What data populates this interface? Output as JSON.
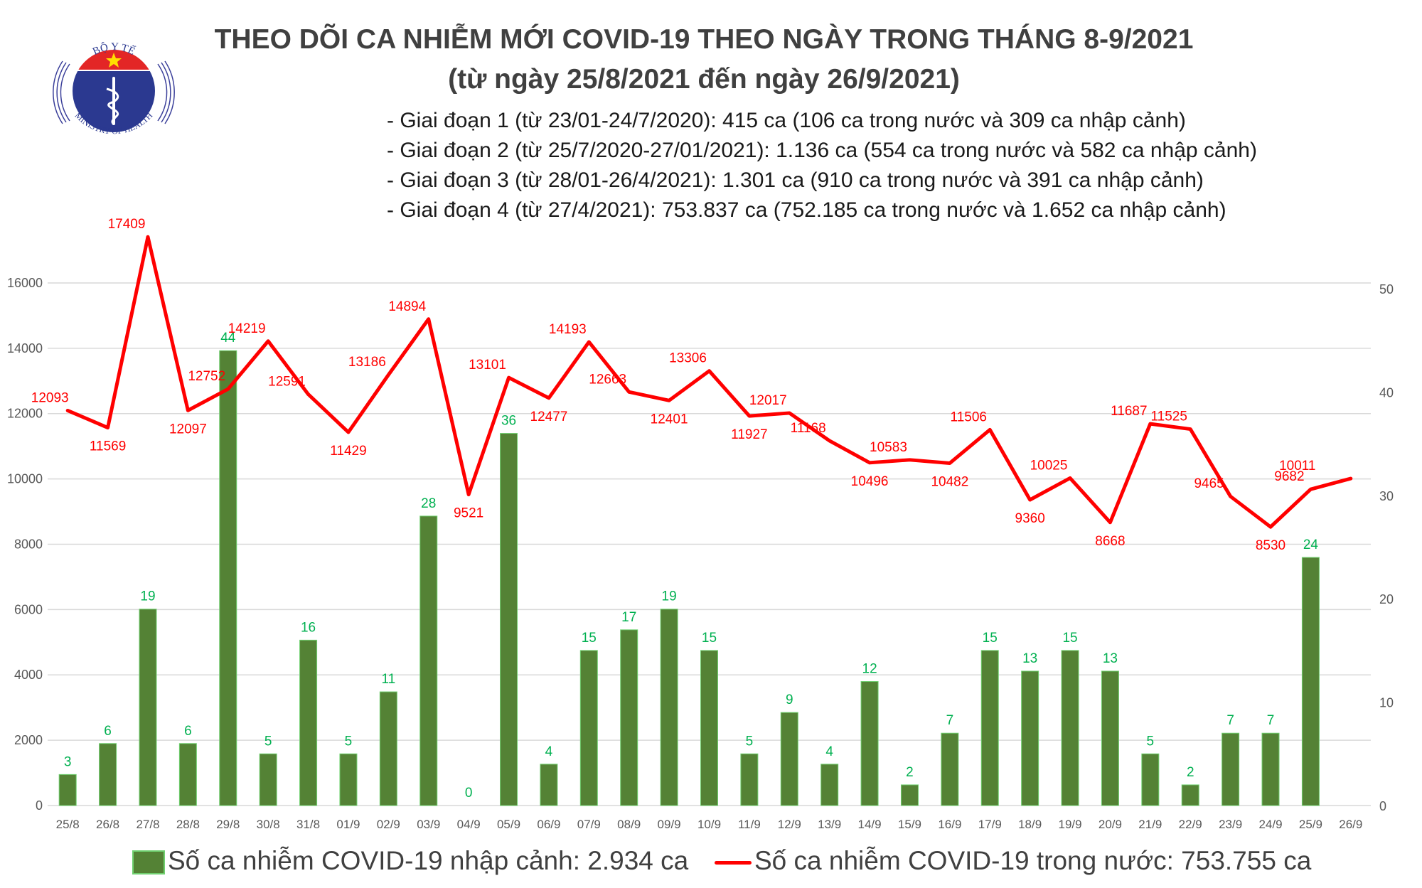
{
  "logo": {
    "top_text": "BỘ Y TẾ",
    "bottom_text": "MINISTRY OF HEALTH"
  },
  "title": {
    "line1": "THEO DÕI CA NHIỄM MỚI COVID-19 THEO NGÀY TRONG THÁNG 8-9/2021",
    "line2": "(từ ngày 25/8/2021 đến ngày 26/9/2021)"
  },
  "stages": [
    "- Giai đoạn 1 (từ 23/01-24/7/2020): 415 ca (106 ca trong nước và 309 ca nhập cảnh)",
    "- Giai đoạn 2 (từ 25/7/2020-27/01/2021): 1.136 ca (554 ca trong nước và 582 ca nhập cảnh)",
    "- Giai đoạn 3 (từ 28/01-26/4/2021): 1.301 ca (910 ca trong nước và 391 ca nhập cảnh)",
    "- Giai đoạn 4 (từ 27/4/2021): 753.837 ca (752.185 ca trong nước và 1.652 ca nhập cảnh)"
  ],
  "legend": {
    "bars": "Số ca nhiễm COVID-19 nhập cảnh: 2.934 ca",
    "line": "Số ca nhiễm COVID-19 trong nước: 753.755 ca"
  },
  "colors": {
    "bar": "#548235",
    "bar_edge": "#70D070",
    "bar_label": "#00B050",
    "line": "#FF0000",
    "grid": "#D9D9D9",
    "axis_text": "#595959"
  },
  "chart_data": {
    "type": "bar+line",
    "categories": [
      "25/8",
      "26/8",
      "27/8",
      "28/8",
      "29/8",
      "30/8",
      "31/8",
      "01/9",
      "02/9",
      "03/9",
      "04/9",
      "05/9",
      "06/9",
      "07/9",
      "08/9",
      "09/9",
      "10/9",
      "11/9",
      "12/9",
      "13/9",
      "14/9",
      "15/9",
      "16/9",
      "17/9",
      "18/9",
      "19/9",
      "20/9",
      "21/9",
      "22/9",
      "23/9",
      "24/9",
      "25/9",
      "26/9"
    ],
    "series": [
      {
        "name": "Số ca nhiễm COVID-19 nhập cảnh: 2.934 ca",
        "type": "bar",
        "axis": "right",
        "values": [
          3,
          6,
          19,
          6,
          44,
          5,
          16,
          5,
          11,
          28,
          0,
          36,
          4,
          15,
          17,
          19,
          15,
          5,
          9,
          4,
          12,
          2,
          7,
          15,
          13,
          15,
          13,
          5,
          2,
          7,
          7,
          24,
          null
        ]
      },
      {
        "name": "Số ca nhiễm COVID-19 trong nước: 753.755 ca",
        "type": "line",
        "axis": "left",
        "values": [
          12093,
          11569,
          17409,
          12097,
          12752,
          14219,
          12591,
          11429,
          13186,
          14894,
          9521,
          13101,
          12477,
          14193,
          12663,
          12401,
          13306,
          11927,
          12017,
          11168,
          10496,
          10583,
          10482,
          11506,
          9360,
          10025,
          8668,
          11687,
          11525,
          9465,
          8530,
          9682,
          10011
        ]
      }
    ],
    "left_axis": {
      "ticks": [
        0,
        2000,
        4000,
        6000,
        8000,
        10000,
        12000,
        14000,
        16000
      ],
      "range": [
        0,
        18000
      ]
    },
    "right_axis": {
      "ticks": [
        0,
        10,
        20,
        30,
        40,
        50
      ],
      "range": [
        0,
        55
      ]
    },
    "grid": true,
    "legend_position": "bottom"
  }
}
